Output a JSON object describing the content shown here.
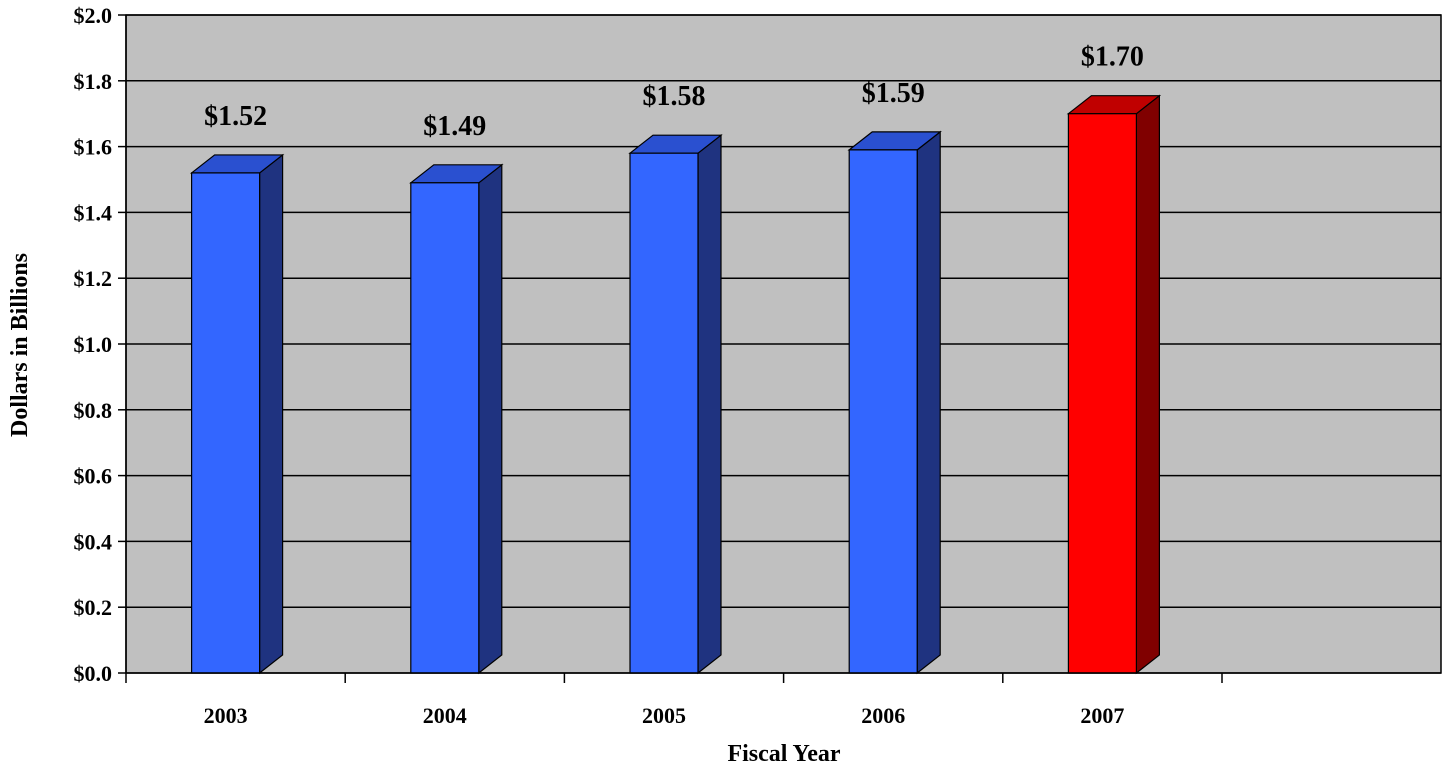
{
  "chart_data": {
    "type": "bar",
    "categories": [
      "2003",
      "2004",
      "2005",
      "2006",
      "2007"
    ],
    "values": [
      1.52,
      1.49,
      1.58,
      1.59,
      1.7
    ],
    "data_labels": [
      "$1.52",
      "$1.49",
      "$1.58",
      "$1.59",
      "$1.70"
    ],
    "title": "",
    "xlabel": "Fiscal Year",
    "ylabel": "Dollars in Billions",
    "ylim": [
      0,
      2.0
    ],
    "yticks": [
      0,
      0.2,
      0.4,
      0.6,
      0.8,
      1.0,
      1.2,
      1.4,
      1.6,
      1.8,
      2.0
    ],
    "ytick_labels": [
      "$0.0",
      "$0.2",
      "$0.4",
      "$0.6",
      "$0.8",
      "$1.0",
      "$1.2",
      "$1.4",
      "$1.6",
      "$1.8",
      "$2.0"
    ],
    "grid": true,
    "plot_background": "#c0c0c0",
    "bar_colors": [
      "#3366ff",
      "#3366ff",
      "#3366ff",
      "#3366ff",
      "#ff0000"
    ],
    "bar_side_colors": [
      "#1f3380",
      "#1f3380",
      "#1f3380",
      "#1f3380",
      "#800000"
    ],
    "bar_top_colors": [
      "#2a50d0",
      "#2a50d0",
      "#2a50d0",
      "#2a50d0",
      "#c00000"
    ],
    "style": "3d-column"
  }
}
